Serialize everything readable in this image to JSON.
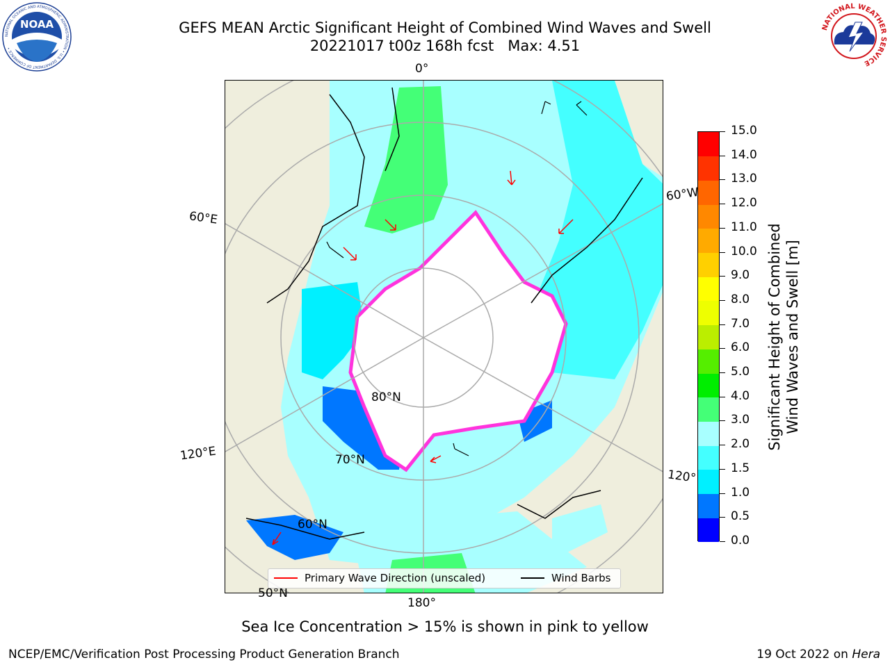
{
  "title": {
    "line1": "GEFS MEAN Arctic Significant Height of Combined Wind Waves and Swell",
    "line2": "20221017 t00z 168h fcst   Max: 4.51"
  },
  "logos": {
    "left": "NOAA",
    "left_ring_text": "NATIONAL OCEANIC AND ATMOSPHERIC ADMINISTRATION • U.S. DEPARTMENT OF COMMERCE •",
    "right_ring_text": "NATIONAL WEATHER SERVICE"
  },
  "map": {
    "meridian_labels": {
      "m0": "0°",
      "m60e": "60°E",
      "m60w": "60°W",
      "m120e": "120°E",
      "m120w": "120°",
      "m180": "180°"
    },
    "parallel_labels": {
      "p80": "80°N",
      "p70": "70°N",
      "p60": "60°N",
      "p50": "50°N"
    }
  },
  "legend": {
    "wave_label": "Primary Wave Direction (unscaled)",
    "barb_label": "Wind Barbs",
    "wave_color": "#ff0000",
    "barb_color": "#000000"
  },
  "colorbar": {
    "title_line1": "Significant Height of Combined",
    "title_line2": "Wind Waves and Swell [m]",
    "tick_labels": [
      "0.0",
      "0.5",
      "1.0",
      "1.5",
      "2.0",
      "3.0",
      "4.0",
      "5.0",
      "6.0",
      "7.0",
      "8.0",
      "9.0",
      "10.0",
      "11.0",
      "12.0",
      "13.0",
      "14.0",
      "15.0"
    ],
    "colors": [
      "#0000ff",
      "#0077ff",
      "#00f0ff",
      "#44ffff",
      "#a8ffff",
      "#44ff77",
      "#00ee00",
      "#55ee00",
      "#bbee00",
      "#eeff00",
      "#ffff00",
      "#ffd000",
      "#ffaa00",
      "#ff8800",
      "#ff6600",
      "#ff3300",
      "#ff0000"
    ]
  },
  "caption": "Sea Ice Concentration > 15% is shown in pink to yellow",
  "footer": {
    "left": "NCEP/EMC/Verification Post Processing Product Generation Branch",
    "right_date": "19 Oct 2022 on ",
    "right_host": "Hera"
  },
  "colors": {
    "land": "#efeedd",
    "ice": "#ffffff",
    "ice_edge": "#ff33dd",
    "grid": "#aaaaaa"
  }
}
